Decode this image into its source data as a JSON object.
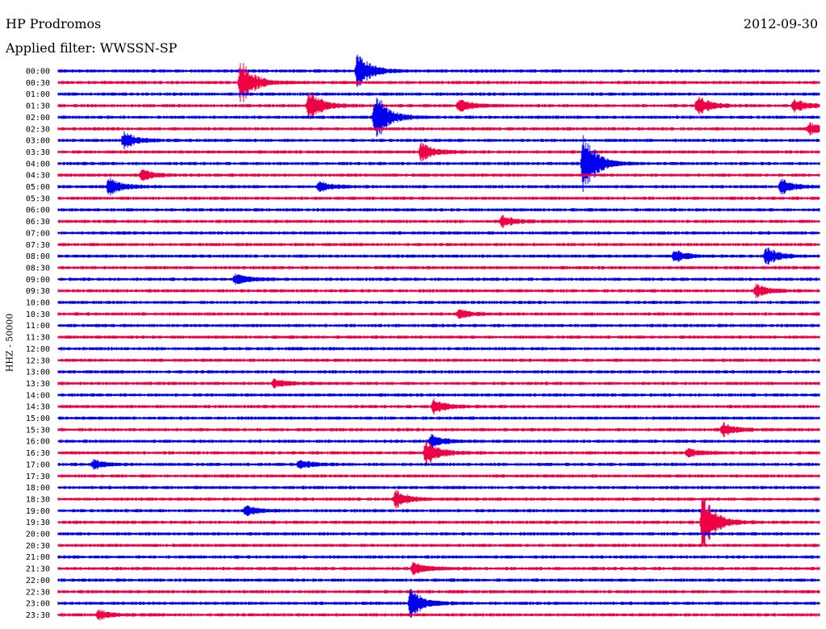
{
  "header": {
    "station": "HP Prodromos",
    "filter": "Applied filter: WWSSN-SP",
    "date": "2012-09-30"
  },
  "chart_data": {
    "type": "line",
    "channel_label": "HHZ - 50000",
    "colors": [
      "#0000ee",
      "#ee0044"
    ],
    "times": [
      "00:00",
      "00:30",
      "01:00",
      "01:30",
      "02:00",
      "02:30",
      "03:00",
      "03:30",
      "04:00",
      "04:30",
      "05:00",
      "05:30",
      "06:00",
      "06:30",
      "07:00",
      "07:30",
      "08:00",
      "08:30",
      "09:00",
      "09:30",
      "10:00",
      "10:30",
      "11:00",
      "11:30",
      "12:00",
      "12:30",
      "13:00",
      "13:30",
      "14:00",
      "14:30",
      "15:00",
      "15:30",
      "16:00",
      "16:30",
      "17:00",
      "17:30",
      "18:00",
      "18:30",
      "19:00",
      "19:30",
      "20:00",
      "20:30",
      "21:00",
      "21:30",
      "22:00",
      "22:30",
      "23:00",
      "23:30"
    ],
    "events": [
      {
        "time": "00:00",
        "minute": 11.8,
        "amp": 1.8
      },
      {
        "time": "00:30",
        "minute": 7.2,
        "amp": 2.2
      },
      {
        "time": "01:30",
        "minute": 9.9,
        "amp": 1.5
      },
      {
        "time": "01:30",
        "minute": 25.2,
        "amp": 0.9
      },
      {
        "time": "01:30",
        "minute": 15.8,
        "amp": 0.6
      },
      {
        "time": "01:30",
        "minute": 29.0,
        "amp": 0.6
      },
      {
        "time": "02:00",
        "minute": 12.5,
        "amp": 2.5
      },
      {
        "time": "02:30",
        "minute": 29.6,
        "amp": 0.5
      },
      {
        "time": "03:00",
        "minute": 2.6,
        "amp": 0.8
      },
      {
        "time": "03:30",
        "minute": 14.3,
        "amp": 0.8
      },
      {
        "time": "04:00",
        "minute": 20.7,
        "amp": 3.0
      },
      {
        "time": "04:30",
        "minute": 3.3,
        "amp": 0.5
      },
      {
        "time": "05:00",
        "minute": 2.0,
        "amp": 0.8
      },
      {
        "time": "05:00",
        "minute": 10.3,
        "amp": 0.5
      },
      {
        "time": "05:00",
        "minute": 28.5,
        "amp": 0.7
      },
      {
        "time": "06:30",
        "minute": 17.5,
        "amp": 0.5
      },
      {
        "time": "08:00",
        "minute": 24.3,
        "amp": 0.6
      },
      {
        "time": "08:00",
        "minute": 27.9,
        "amp": 0.8
      },
      {
        "time": "09:00",
        "minute": 7.0,
        "amp": 0.5
      },
      {
        "time": "09:30",
        "minute": 27.5,
        "amp": 0.6
      },
      {
        "time": "10:30",
        "minute": 15.8,
        "amp": 0.4
      },
      {
        "time": "13:30",
        "minute": 8.5,
        "amp": 0.4
      },
      {
        "time": "14:30",
        "minute": 14.8,
        "amp": 0.7
      },
      {
        "time": "15:30",
        "minute": 26.2,
        "amp": 0.6
      },
      {
        "time": "16:00",
        "minute": 14.7,
        "amp": 0.6
      },
      {
        "time": "16:30",
        "minute": 14.5,
        "amp": 1.2
      },
      {
        "time": "16:30",
        "minute": 24.8,
        "amp": 0.4
      },
      {
        "time": "17:00",
        "minute": 1.4,
        "amp": 0.4
      },
      {
        "time": "17:00",
        "minute": 9.5,
        "amp": 0.4
      },
      {
        "time": "18:30",
        "minute": 13.3,
        "amp": 0.8
      },
      {
        "time": "19:00",
        "minute": 7.4,
        "amp": 0.5
      },
      {
        "time": "19:30",
        "minute": 25.4,
        "amp": 3.0
      },
      {
        "time": "21:30",
        "minute": 14.0,
        "amp": 0.6
      },
      {
        "time": "23:00",
        "minute": 13.9,
        "amp": 1.4
      },
      {
        "time": "23:30",
        "minute": 1.6,
        "amp": 0.4
      }
    ]
  }
}
